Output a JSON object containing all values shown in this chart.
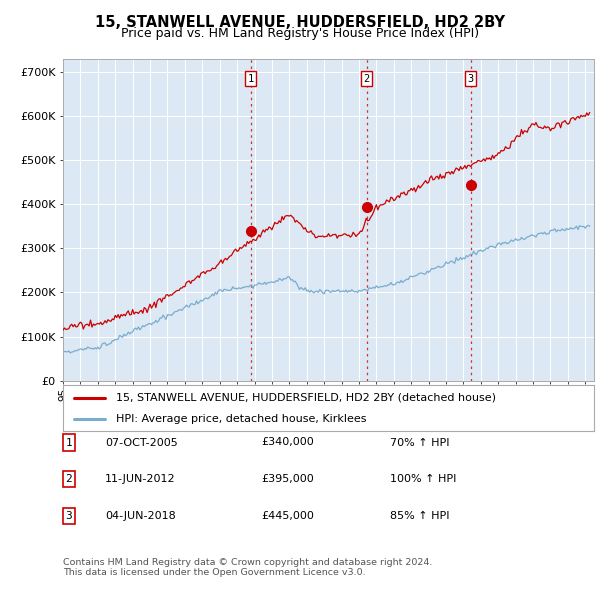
{
  "title": "15, STANWELL AVENUE, HUDDERSFIELD, HD2 2BY",
  "subtitle": "Price paid vs. HM Land Registry's House Price Index (HPI)",
  "ylim": [
    0,
    730000
  ],
  "yticks": [
    0,
    100000,
    200000,
    300000,
    400000,
    500000,
    600000,
    700000
  ],
  "ytick_labels": [
    "£0",
    "£100K",
    "£200K",
    "£300K",
    "£400K",
    "£500K",
    "£600K",
    "£700K"
  ],
  "background_color": "#ffffff",
  "plot_bg_color": "#dce9f5",
  "grid_color": "#ffffff",
  "sale_dates": [
    2005.77,
    2012.44,
    2018.42
  ],
  "sale_prices": [
    340000,
    395000,
    445000
  ],
  "sale_labels": [
    "1",
    "2",
    "3"
  ],
  "vline_color": "#cc3333",
  "marker_color": "#cc0000",
  "line_color_red": "#cc0000",
  "line_color_blue": "#7aaccd",
  "legend_red": "15, STANWELL AVENUE, HUDDERSFIELD, HD2 2BY (detached house)",
  "legend_blue": "HPI: Average price, detached house, Kirklees",
  "table_data": [
    {
      "num": "1",
      "date": "07-OCT-2005",
      "price": "£340,000",
      "hpi": "70% ↑ HPI"
    },
    {
      "num": "2",
      "date": "11-JUN-2012",
      "price": "£395,000",
      "hpi": "100% ↑ HPI"
    },
    {
      "num": "3",
      "date": "04-JUN-2018",
      "price": "£445,000",
      "hpi": "85% ↑ HPI"
    }
  ],
  "footer": "Contains HM Land Registry data © Crown copyright and database right 2024.\nThis data is licensed under the Open Government Licence v3.0.",
  "title_fontsize": 10.5,
  "subtitle_fontsize": 9.0
}
